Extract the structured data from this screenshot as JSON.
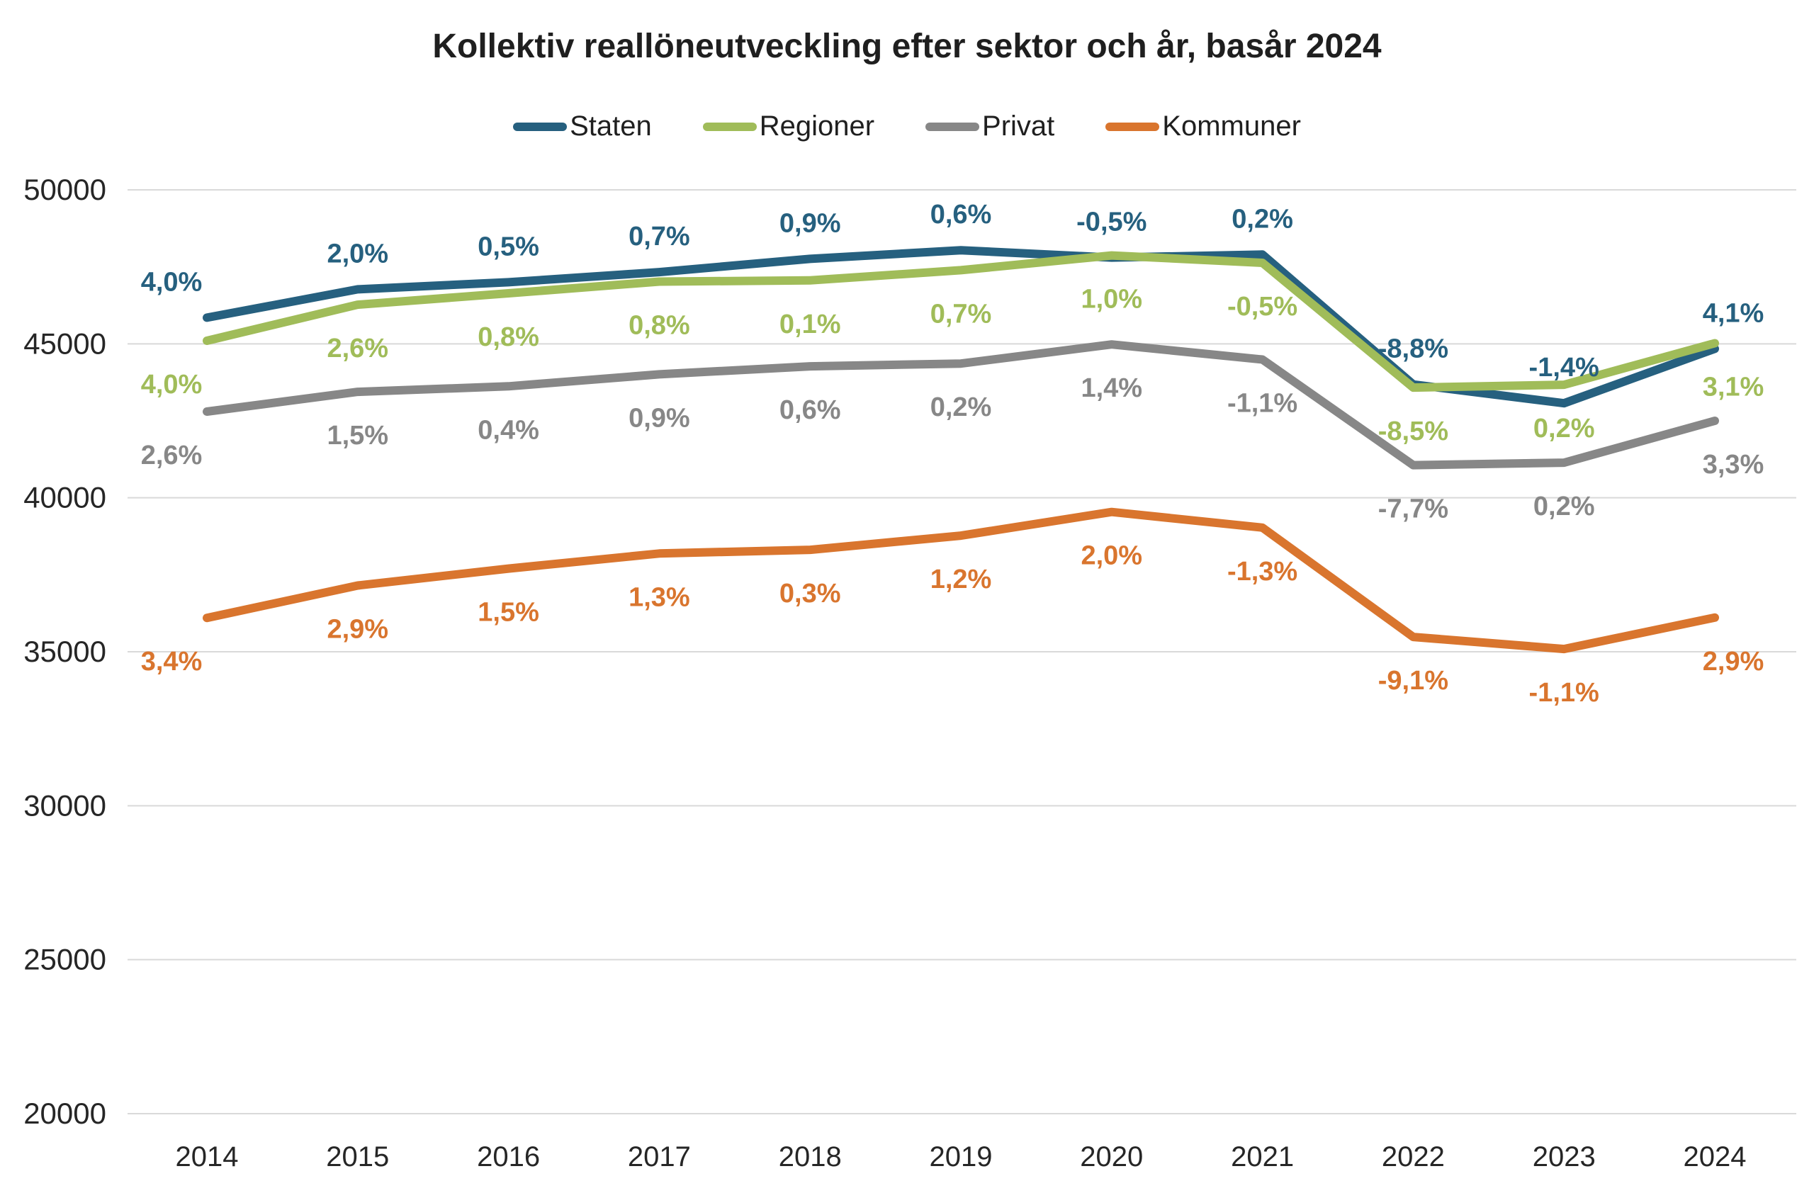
{
  "title": "Kollektiv reallöneutveckling efter sektor och år, basår 2024",
  "chart_data": {
    "type": "line",
    "title": "Kollektiv reallöneutveckling efter sektor och år, basår 2024",
    "categories": [
      "2014",
      "2015",
      "2016",
      "2017",
      "2018",
      "2019",
      "2020",
      "2021",
      "2022",
      "2023",
      "2024"
    ],
    "y_ticks": [
      "50000",
      "45000",
      "40000",
      "35000",
      "30000",
      "25000",
      "20000"
    ],
    "ylim": [
      20000,
      50000
    ],
    "grid": "horizontal",
    "legend_position": "top",
    "series": [
      {
        "name": "Staten",
        "color": "#26607F",
        "label_side": "above",
        "values": [
          45850,
          46770,
          47000,
          47330,
          47760,
          48040,
          47800,
          47900,
          43680,
          43070,
          44840
        ],
        "pct_labels": [
          "4,0%",
          "2,0%",
          "0,5%",
          "0,7%",
          "0,9%",
          "0,6%",
          "-0,5%",
          "0,2%",
          "-8,8%",
          "-1,4%",
          "4,1%"
        ]
      },
      {
        "name": "Regioner",
        "color": "#A0BC59",
        "label_side": "below",
        "values": [
          45100,
          46270,
          46640,
          47020,
          47060,
          47390,
          47870,
          47630,
          43580,
          43670,
          45020
        ],
        "pct_labels": [
          "4,0%",
          "2,6%",
          "0,8%",
          "0,8%",
          "0,1%",
          "0,7%",
          "1,0%",
          "-0,5%",
          "-8,5%",
          "0,2%",
          "3,1%"
        ]
      },
      {
        "name": "Privat",
        "color": "#878787",
        "label_side": "below",
        "values": [
          42800,
          43440,
          43620,
          44010,
          44270,
          44360,
          44980,
          44490,
          41060,
          41140,
          42500
        ],
        "pct_labels": [
          "2,6%",
          "1,5%",
          "0,4%",
          "0,9%",
          "0,6%",
          "0,2%",
          "1,4%",
          "-1,1%",
          "-7,7%",
          "0,2%",
          "3,3%"
        ]
      },
      {
        "name": "Kommuner",
        "color": "#D9752E",
        "label_side": "below",
        "values": [
          36100,
          37150,
          37700,
          38190,
          38310,
          38770,
          39540,
          39030,
          35480,
          35090,
          36110
        ],
        "pct_labels": [
          "3,4%",
          "2,9%",
          "1,5%",
          "1,3%",
          "0,3%",
          "1,2%",
          "2,0%",
          "-1,3%",
          "-9,1%",
          "-1,1%",
          "2,9%"
        ]
      }
    ]
  }
}
